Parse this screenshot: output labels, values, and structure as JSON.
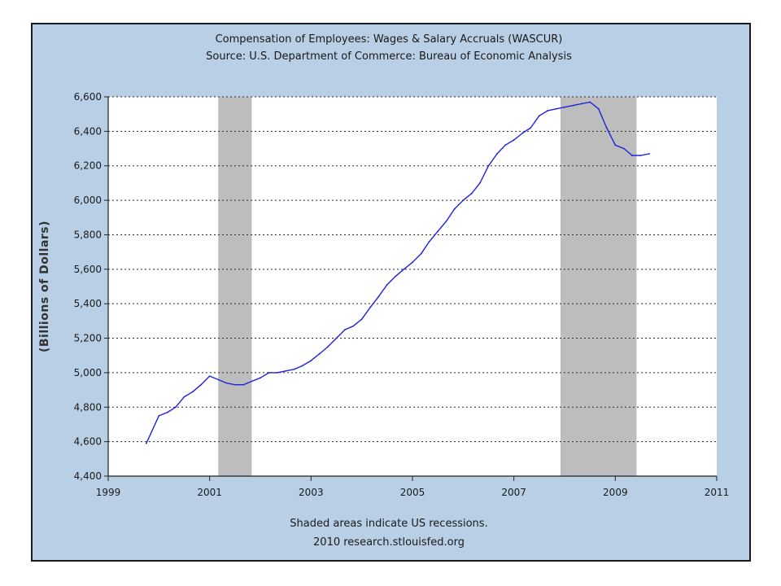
{
  "chart_data": {
    "type": "line",
    "title": "Compensation of Employees: Wages & Salary Accruals (WASCUR)",
    "subtitle": "Source: U.S. Department of Commerce: Bureau of Economic Analysis",
    "xlabel": "",
    "ylabel": "(Billions of Dollars)",
    "footer": [
      "Shaded areas indicate US recessions.",
      "2010 research.stlouisfed.org"
    ],
    "xlim": [
      1999,
      2011
    ],
    "ylim": [
      4400,
      6600
    ],
    "x_ticks": [
      1999,
      2001,
      2003,
      2005,
      2007,
      2009,
      2011
    ],
    "x_tick_labels": [
      "1999",
      "2001",
      "2003",
      "2005",
      "2007",
      "2009",
      "2011"
    ],
    "y_ticks": [
      4400,
      4600,
      4800,
      5000,
      5200,
      5400,
      5600,
      5800,
      6000,
      6200,
      6400,
      6600
    ],
    "y_tick_labels": [
      "4,400",
      "4,600",
      "4,800",
      "5,000",
      "5,200",
      "5,400",
      "5,600",
      "5,800",
      "6,000",
      "6,200",
      "6,400",
      "6,600"
    ],
    "grid": true,
    "recessions": [
      {
        "start": 2001.17,
        "end": 2001.83
      },
      {
        "start": 2007.92,
        "end": 2009.42
      }
    ],
    "series": [
      {
        "line_color": "#2222dd",
        "x": [
          1999.75,
          2000.0,
          2000.17,
          2000.33,
          2000.5,
          2000.67,
          2000.83,
          2001.0,
          2001.17,
          2001.33,
          2001.5,
          2001.67,
          2001.83,
          2002.0,
          2002.17,
          2002.33,
          2002.5,
          2002.67,
          2002.83,
          2003.0,
          2003.17,
          2003.33,
          2003.5,
          2003.67,
          2003.83,
          2004.0,
          2004.17,
          2004.33,
          2004.5,
          2004.67,
          2004.83,
          2005.0,
          2005.17,
          2005.33,
          2005.5,
          2005.67,
          2005.83,
          2006.0,
          2006.17,
          2006.33,
          2006.5,
          2006.67,
          2006.83,
          2007.0,
          2007.17,
          2007.33,
          2007.5,
          2007.67,
          2007.83,
          2008.0,
          2008.17,
          2008.33,
          2008.5,
          2008.67,
          2008.83,
          2009.0,
          2009.17,
          2009.33,
          2009.5,
          2009.67
        ],
        "values": [
          4590,
          4750,
          4770,
          4800,
          4860,
          4890,
          4930,
          4980,
          4960,
          4940,
          4930,
          4930,
          4950,
          4970,
          5000,
          5000,
          5010,
          5020,
          5040,
          5070,
          5110,
          5150,
          5200,
          5250,
          5270,
          5310,
          5380,
          5440,
          5510,
          5560,
          5600,
          5640,
          5690,
          5760,
          5820,
          5880,
          5950,
          6000,
          6040,
          6100,
          6200,
          6270,
          6320,
          6350,
          6390,
          6420,
          6490,
          6520,
          6530,
          6540,
          6550,
          6560,
          6570,
          6530,
          6420,
          6320,
          6300,
          6260,
          6260,
          6270
        ]
      }
    ]
  }
}
